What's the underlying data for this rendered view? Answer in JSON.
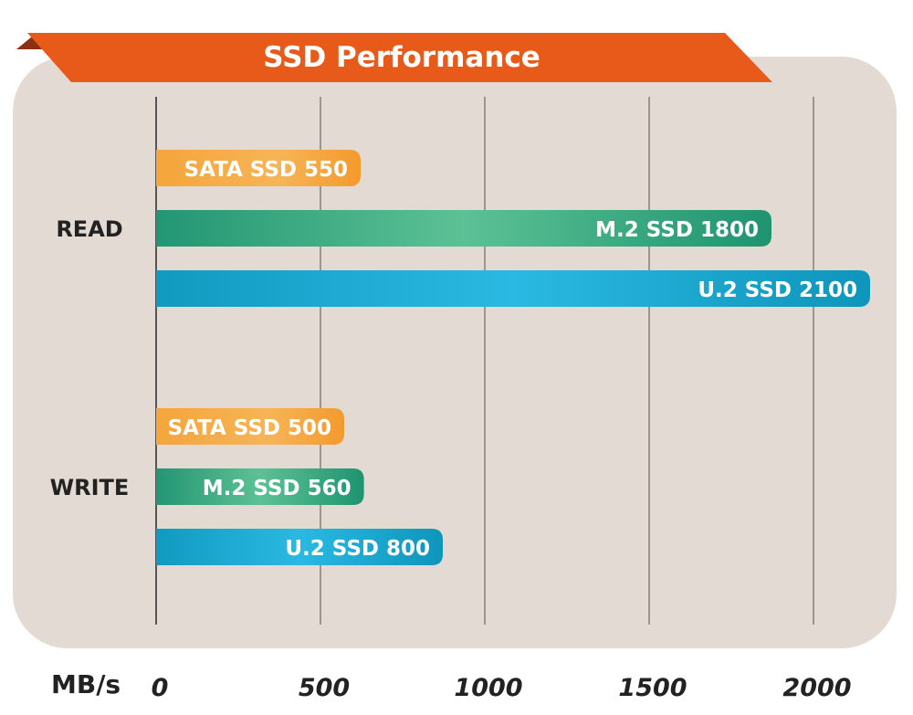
{
  "chart_data": {
    "type": "bar",
    "title": "SSD Performance",
    "x_unit": "MB/s",
    "xlim": [
      0,
      2000
    ],
    "x_ticks": [
      "0",
      "500",
      "1000",
      "1500",
      "2000"
    ],
    "groups": [
      {
        "label": "READ",
        "bars": [
          {
            "name": "SATA SSD",
            "value": 550,
            "label": "SATA SSD 550",
            "kind": "sata"
          },
          {
            "name": "M.2 SSD",
            "value": 1800,
            "label": "M.2 SSD 1800",
            "kind": "m2"
          },
          {
            "name": "U.2 SSD",
            "value": 2100,
            "label": "U.2 SSD 2100",
            "kind": "u2"
          }
        ]
      },
      {
        "label": "WRITE",
        "bars": [
          {
            "name": "SATA SSD",
            "value": 500,
            "label": "SATA SSD 500",
            "kind": "sata"
          },
          {
            "name": "M.2 SSD",
            "value": 560,
            "label": "M.2 SSD 560",
            "kind": "m2"
          },
          {
            "name": "U.2 SSD",
            "value": 800,
            "label": "U.2 SSD 800",
            "kind": "u2"
          }
        ]
      }
    ],
    "grid": true,
    "colors": {
      "sata": "#f5a53b",
      "m2": "#2aa27a",
      "u2": "#13a7cf",
      "title_banner": "#e85a1a",
      "title_shadow": "#8c2f12",
      "panel": "#e3dbd3"
    }
  }
}
